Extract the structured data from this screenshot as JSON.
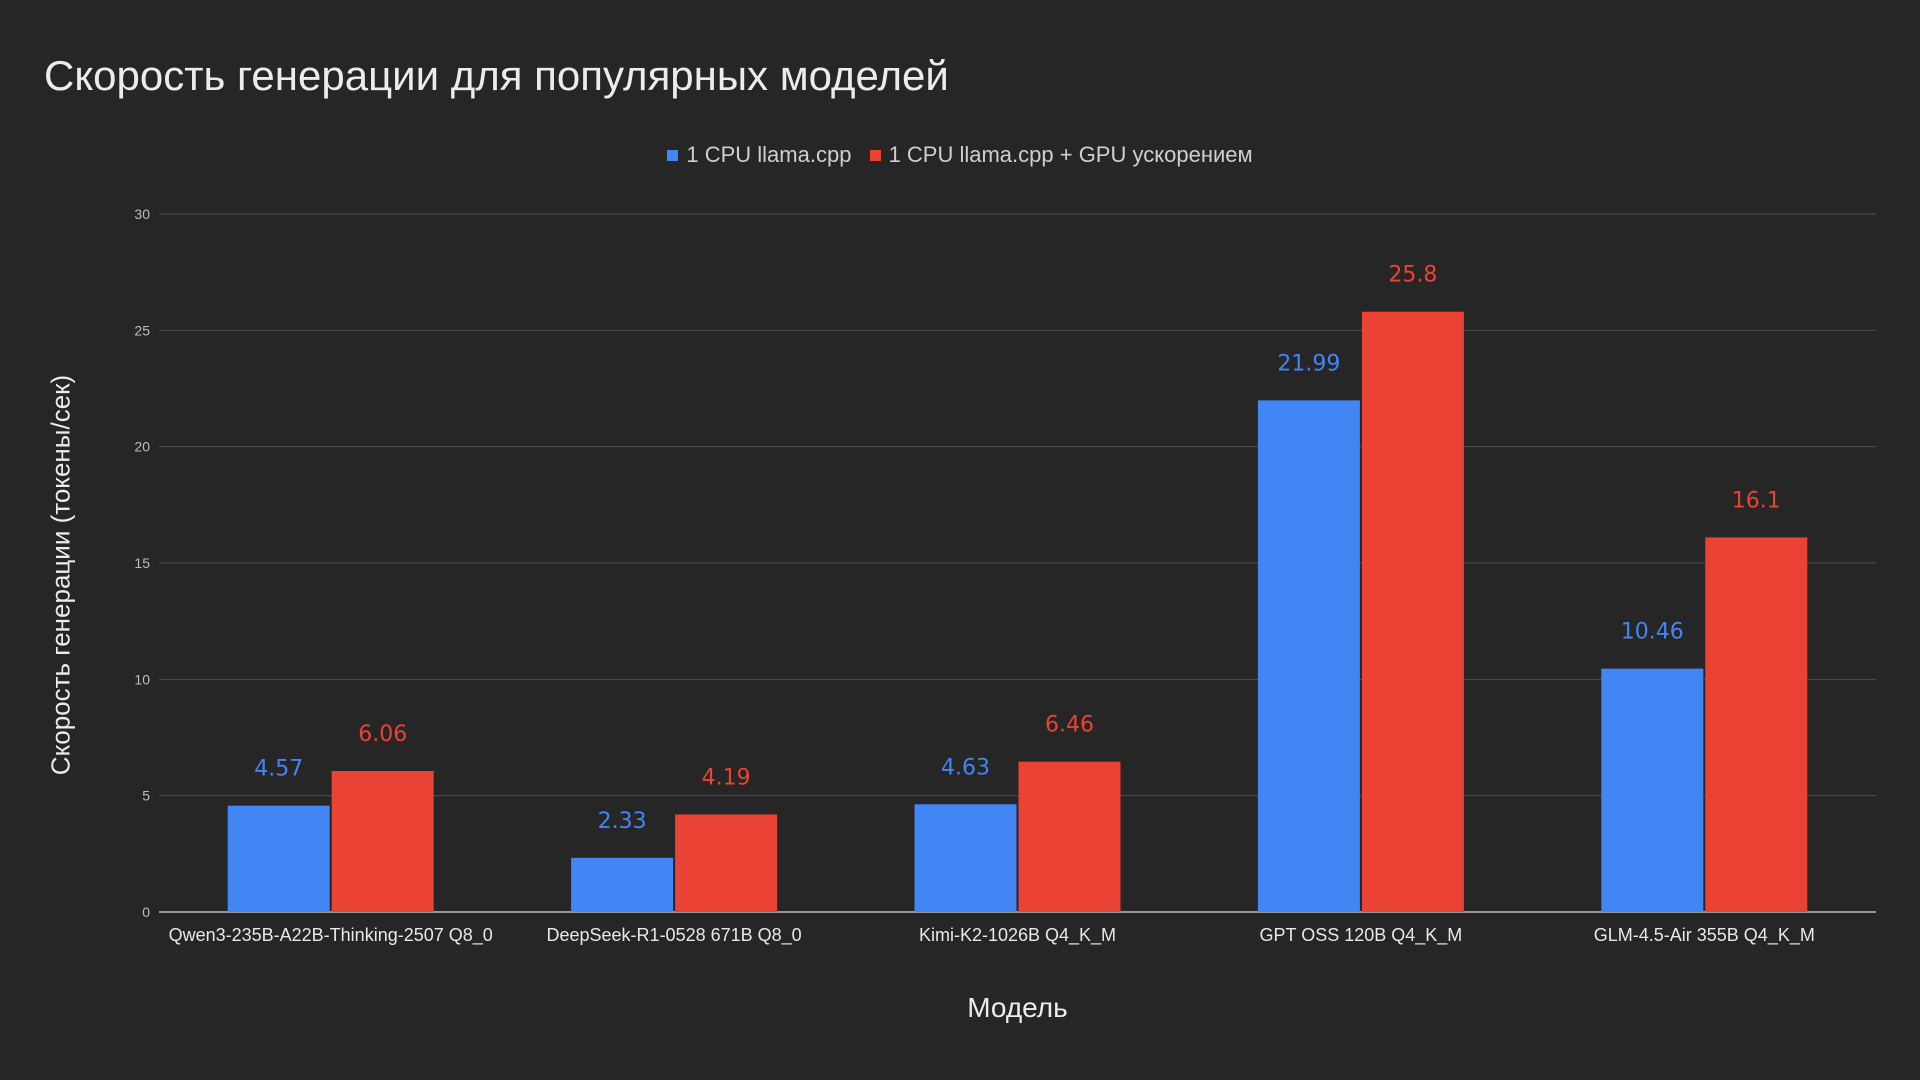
{
  "chart_data": {
    "type": "bar",
    "title": "Скорость генерации для популярных моделей",
    "xlabel": "Модель",
    "ylabel": "Скорость генерации (токены/сек)",
    "categories": [
      "Qwen3-235B-A22B-Thinking-2507 Q8_0",
      "DeepSeek-R1-0528 671B Q8_0",
      "Kimi-K2-1026B Q4_K_M",
      "GPT OSS 120B Q4_K_M",
      "GLM-4.5-Air 355B Q4_K_M"
    ],
    "series": [
      {
        "name": "1 CPU llama.cpp",
        "color": "#4285f4",
        "values": [
          4.57,
          2.33,
          4.63,
          21.99,
          10.46
        ],
        "labels": [
          "4.57",
          "2.33",
          "4.63",
          "21.99",
          "10.46"
        ]
      },
      {
        "name": "1 CPU llama.cpp + GPU ускорением",
        "color": "#ea4335",
        "values": [
          6.06,
          4.19,
          6.46,
          25.8,
          16.1
        ],
        "labels": [
          "6.06",
          "4.19",
          "6.46",
          "25.8",
          "16.1"
        ]
      }
    ],
    "ylim": [
      0,
      30
    ],
    "yticks": [
      "0",
      "5",
      "10",
      "15",
      "20",
      "25",
      "30"
    ],
    "grid": true,
    "legend": "top-center"
  }
}
